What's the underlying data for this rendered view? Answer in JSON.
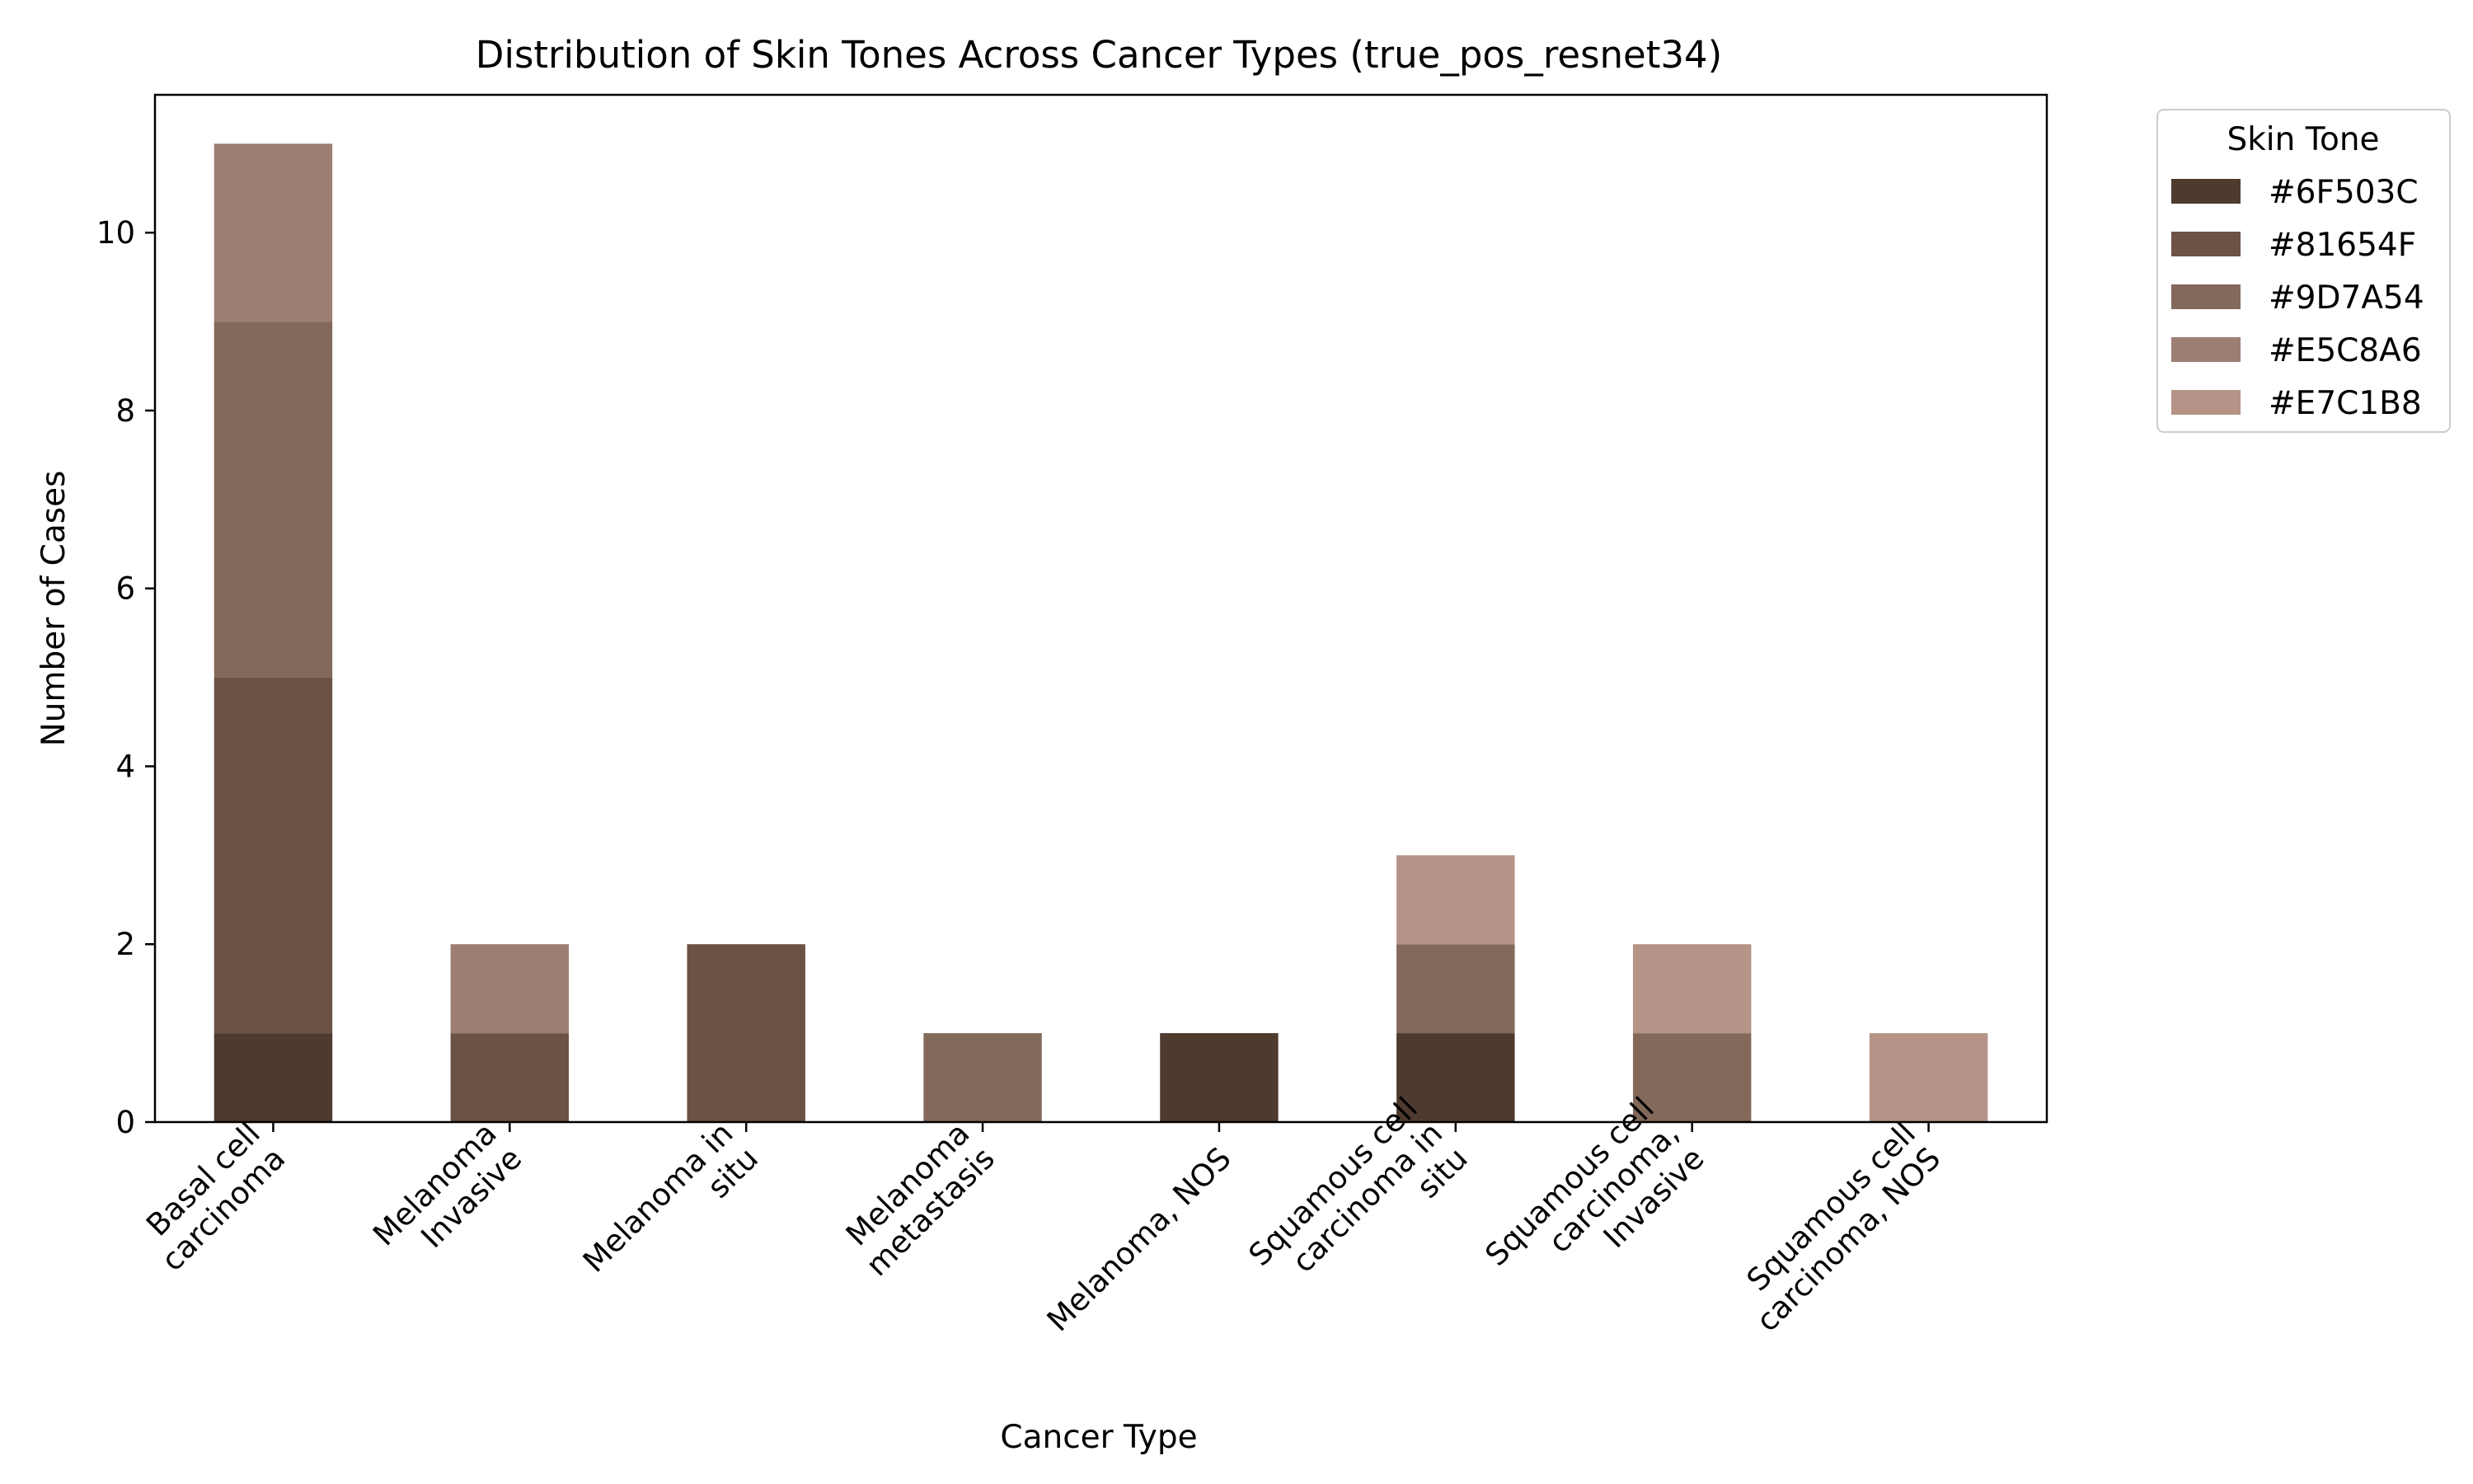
{
  "chart_data": {
    "type": "bar",
    "stacked": true,
    "title": "Distribution of Skin Tones Across Cancer Types (true_pos_resnet34)",
    "xlabel": "Cancer Type",
    "ylabel": "Number of Cases",
    "ylim": [
      0,
      11.55
    ],
    "yticks": [
      0,
      2,
      4,
      6,
      8,
      10
    ],
    "categories": [
      [
        "Basal cell",
        "carcinoma"
      ],
      [
        "Melanoma",
        "Invasive"
      ],
      [
        "Melanoma in",
        "situ"
      ],
      [
        "Melanoma",
        "metastasis"
      ],
      [
        "Melanoma, NOS"
      ],
      [
        "Squamous cell",
        "carcinoma in",
        "situ"
      ],
      [
        "Squamous cell",
        "carcinoma,",
        "Invasive"
      ],
      [
        "Squamous cell",
        "carcinoma, NOS"
      ]
    ],
    "legend": {
      "title": "Skin Tone",
      "placement": "outside upper right"
    },
    "series": [
      {
        "name": "#6F503C",
        "color": "#4e3a2e",
        "values": [
          1,
          0,
          0,
          0,
          1,
          1,
          0,
          0
        ]
      },
      {
        "name": "#81654F",
        "color": "#6b5244",
        "values": [
          4,
          1,
          2,
          0,
          0,
          0,
          0,
          0
        ]
      },
      {
        "name": "#9D7A54",
        "color": "#83695a",
        "values": [
          4,
          0,
          0,
          1,
          0,
          1,
          1,
          0
        ]
      },
      {
        "name": "#E5C8A6",
        "color": "#9c7e72",
        "values": [
          2,
          1,
          0,
          0,
          0,
          0,
          0,
          0
        ]
      },
      {
        "name": "#E7C1B8",
        "color": "#b59487",
        "values": [
          0,
          0,
          0,
          0,
          0,
          1,
          1,
          1
        ]
      }
    ]
  }
}
